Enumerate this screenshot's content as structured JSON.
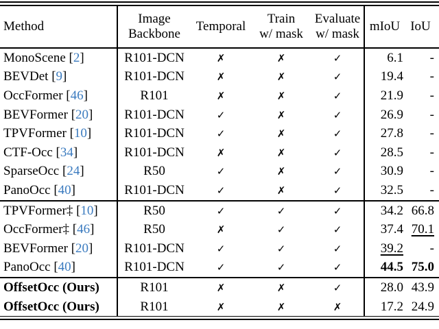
{
  "table": {
    "headers": {
      "method": "Method",
      "backbone_line1": "Image",
      "backbone_line2": "Backbone",
      "temporal": "Temporal",
      "train_line1": "Train",
      "train_line2": "w/ mask",
      "evaluate_line1": "Evaluate",
      "evaluate_line2": "w/ mask",
      "miou": "mIoU",
      "iou": "IoU"
    },
    "marks": {
      "yes": "✓",
      "no": "✗"
    },
    "colors": {
      "citation_blue": "#3b7bbf",
      "text": "#000000",
      "background": "#ffffff"
    },
    "sections": [
      {
        "rows": [
          {
            "method": "MonoScene",
            "cite": "2",
            "backbone": "R101-DCN",
            "temporal": "no",
            "train": "no",
            "evaluate": "yes",
            "miou": "6.1",
            "iou": "-"
          },
          {
            "method": "BEVDet",
            "cite": "9",
            "backbone": "R101-DCN",
            "temporal": "no",
            "train": "no",
            "evaluate": "yes",
            "miou": "19.4",
            "iou": "-"
          },
          {
            "method": "OccFormer",
            "cite": "46",
            "backbone": "R101",
            "temporal": "no",
            "train": "no",
            "evaluate": "yes",
            "miou": "21.9",
            "iou": "-"
          },
          {
            "method": "BEVFormer",
            "cite": "20",
            "backbone": "R101-DCN",
            "temporal": "yes",
            "train": "no",
            "evaluate": "yes",
            "miou": "26.9",
            "iou": "-"
          },
          {
            "method": "TPVFormer",
            "cite": "10",
            "backbone": "R101-DCN",
            "temporal": "yes",
            "train": "no",
            "evaluate": "yes",
            "miou": "27.8",
            "iou": "-"
          },
          {
            "method": "CTF-Occ",
            "cite": "34",
            "backbone": "R101-DCN",
            "temporal": "no",
            "train": "no",
            "evaluate": "yes",
            "miou": "28.5",
            "iou": "-"
          },
          {
            "method": "SparseOcc",
            "cite": "24",
            "backbone": "R50",
            "temporal": "yes",
            "train": "no",
            "evaluate": "yes",
            "miou": "30.9",
            "iou": "-"
          },
          {
            "method": "PanoOcc",
            "cite": "40",
            "backbone": "R101-DCN",
            "temporal": "yes",
            "train": "no",
            "evaluate": "yes",
            "miou": "32.5",
            "iou": "-"
          }
        ]
      },
      {
        "rows": [
          {
            "method": "TPVFormer‡",
            "cite": "10",
            "backbone": "R50",
            "temporal": "yes",
            "train": "yes",
            "evaluate": "yes",
            "miou": "34.2",
            "iou": "66.8"
          },
          {
            "method": "OccFormer‡",
            "cite": "46",
            "backbone": "R50",
            "temporal": "no",
            "train": "yes",
            "evaluate": "yes",
            "miou": "37.4",
            "iou": "70.1",
            "iou_style": "underline"
          },
          {
            "method": "BEVFormer",
            "cite": "20",
            "backbone": "R101-DCN",
            "temporal": "yes",
            "train": "yes",
            "evaluate": "yes",
            "miou": "39.2",
            "miou_style": "underline",
            "iou": "-"
          },
          {
            "method": "PanoOcc",
            "cite": "40",
            "backbone": "R101-DCN",
            "temporal": "yes",
            "train": "yes",
            "evaluate": "yes",
            "miou": "44.5",
            "miou_style": "bold",
            "iou": "75.0",
            "iou_style": "bold"
          }
        ]
      },
      {
        "rows": [
          {
            "method": "OffsetOcc (Ours)",
            "method_bold": true,
            "backbone": "R101",
            "temporal": "no",
            "train": "no",
            "evaluate": "yes",
            "miou": "28.0",
            "iou": "43.9"
          },
          {
            "method": "OffsetOcc (Ours)",
            "method_bold": true,
            "backbone": "R101",
            "temporal": "no",
            "train": "no",
            "evaluate": "no",
            "miou": "17.2",
            "iou": "24.9"
          }
        ]
      }
    ]
  }
}
